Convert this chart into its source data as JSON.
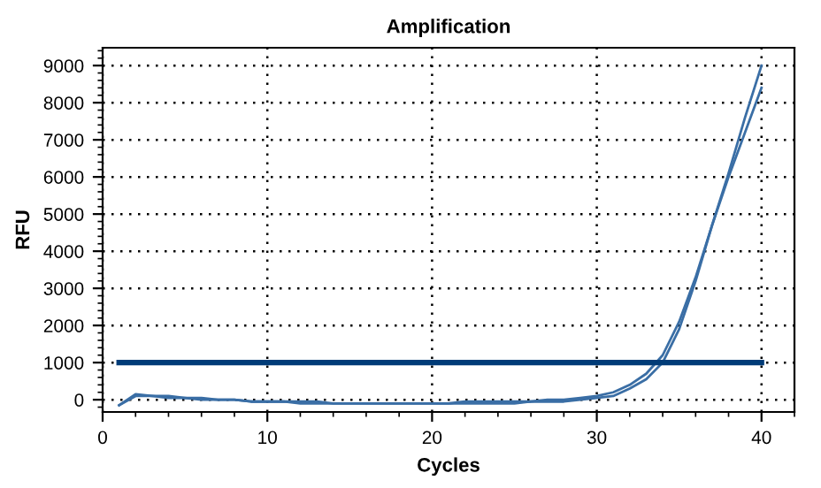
{
  "chart_data": {
    "type": "line",
    "title": "Amplification",
    "xlabel": "Cycles",
    "ylabel": "RFU",
    "xlim": [
      0,
      42
    ],
    "xticks": [
      0,
      10,
      20,
      30,
      40
    ],
    "ylim": [
      -330,
      9480
    ],
    "yticks": [
      0,
      1000,
      2000,
      3000,
      4000,
      5000,
      6000,
      7000,
      8000,
      9000
    ],
    "grid": true,
    "line_style": "solid",
    "marker": "none",
    "series": [
      {
        "color": "#3a6ea5",
        "x": [
          1,
          2,
          3,
          4,
          5,
          6,
          7,
          8,
          9,
          10,
          11,
          12,
          13,
          14,
          15,
          16,
          17,
          18,
          19,
          20,
          21,
          22,
          23,
          24,
          25,
          26,
          27,
          28,
          29,
          30,
          31,
          32,
          33,
          34,
          35,
          36,
          37,
          38,
          39,
          40
        ],
        "values": [
          -150,
          150,
          100,
          100,
          50,
          50,
          0,
          0,
          -50,
          -50,
          -50,
          -50,
          -50,
          -100,
          -100,
          -100,
          -100,
          -100,
          -100,
          -100,
          -100,
          -50,
          -50,
          -50,
          -50,
          -50,
          0,
          0,
          50,
          100,
          200,
          400,
          700,
          1200,
          2100,
          3300,
          4700,
          6100,
          7600,
          9000
        ]
      },
      {
        "color": "#3a6ea5",
        "x": [
          1,
          2,
          3,
          4,
          5,
          6,
          7,
          8,
          9,
          10,
          11,
          12,
          13,
          14,
          15,
          16,
          17,
          18,
          19,
          20,
          21,
          22,
          23,
          24,
          25,
          26,
          27,
          28,
          29,
          30,
          31,
          32,
          33,
          34,
          35,
          36,
          37,
          38,
          39,
          40
        ],
        "values": [
          -150,
          100,
          100,
          50,
          50,
          0,
          0,
          0,
          -50,
          -50,
          -50,
          -100,
          -100,
          -100,
          -100,
          -100,
          -100,
          -100,
          -100,
          -100,
          -100,
          -100,
          -100,
          -100,
          -100,
          -50,
          -50,
          -50,
          0,
          50,
          100,
          300,
          550,
          1000,
          1900,
          3200,
          4700,
          6000,
          7200,
          8400
        ]
      },
      {
        "color": "#003c78",
        "x": [
          1,
          40
        ],
        "values": [
          1000,
          1000
        ]
      }
    ]
  }
}
